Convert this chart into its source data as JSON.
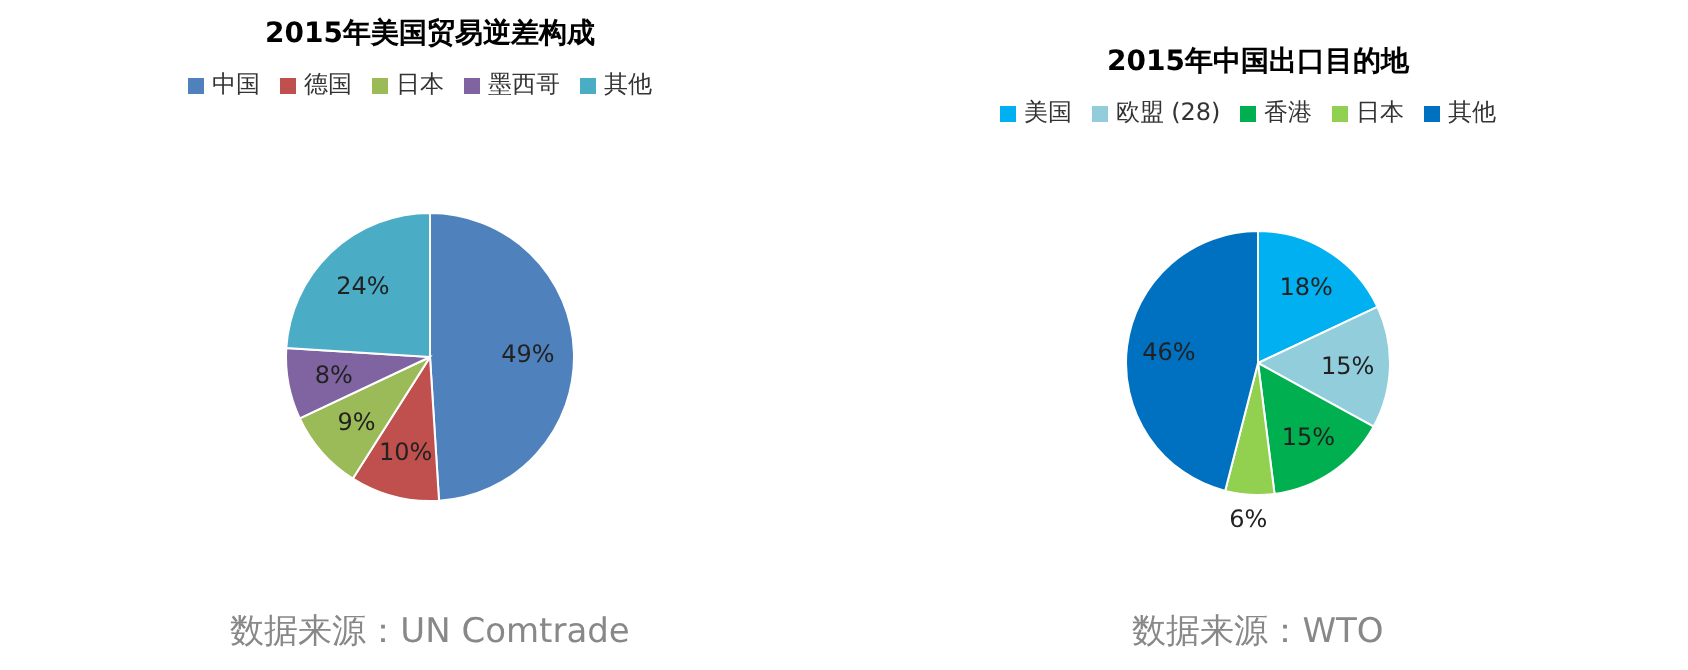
{
  "chart_data": [
    {
      "type": "pie",
      "title": "2015年美国贸易逆差构成",
      "categories": [
        "中国",
        "德国",
        "日本",
        "墨西哥",
        "其他"
      ],
      "values": [
        49,
        10,
        9,
        8,
        24
      ],
      "colors": [
        "#4f81bd",
        "#c0504d",
        "#9bbb59",
        "#8064a2",
        "#4bacc6"
      ],
      "value_labels": [
        "49%",
        "10%",
        "9%",
        "8%",
        "24%"
      ],
      "legend": "top",
      "annotations": [
        "数据来源：UN Comtrade"
      ]
    },
    {
      "type": "pie",
      "title": "2015年中国出口目的地",
      "categories": [
        "美国",
        "欧盟 (28)",
        "香港",
        "日本",
        "其他"
      ],
      "values": [
        18,
        15,
        15,
        6,
        46
      ],
      "colors": [
        "#00b0f0",
        "#92cddc",
        "#00b050",
        "#92d050",
        "#0070c0"
      ],
      "value_labels": [
        "18%",
        "15%",
        "15%",
        "6%",
        "46%"
      ],
      "legend": "top",
      "annotations": [
        "数据来源：WTO"
      ]
    }
  ]
}
